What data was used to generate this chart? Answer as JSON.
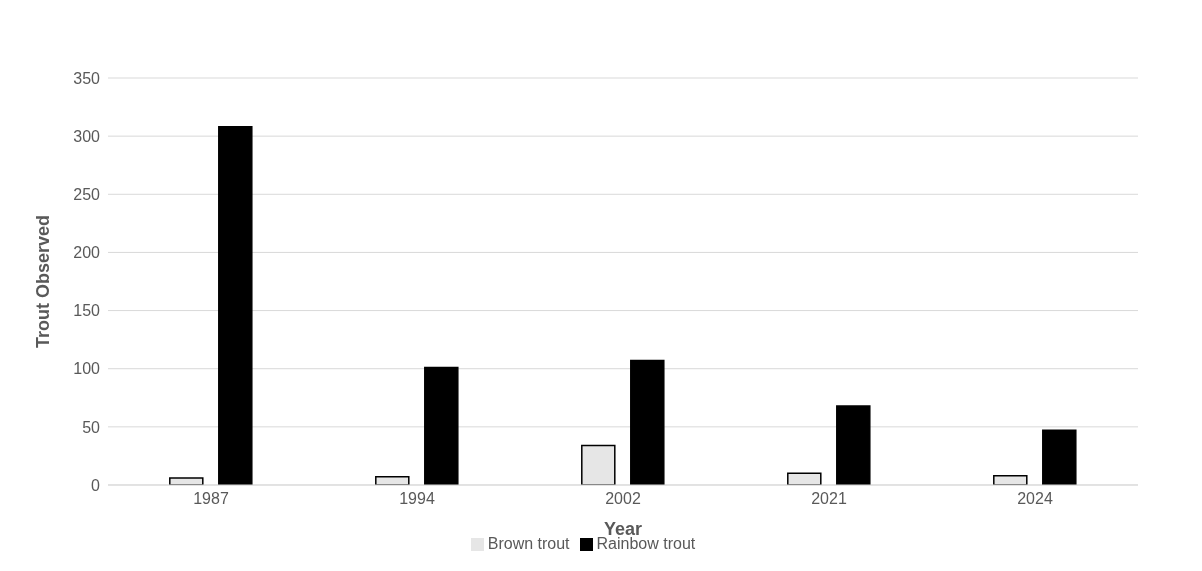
{
  "chart_data": {
    "type": "bar",
    "xlabel": "Year",
    "ylabel": "Trout Observed",
    "categories": [
      "1987",
      "1994",
      "2002",
      "2021",
      "2024"
    ],
    "series": [
      {
        "name": "Brown trout",
        "color": "#e6e6e6",
        "values": [
          6,
          7,
          34,
          10,
          8
        ]
      },
      {
        "name": "Rainbow trout",
        "color": "#000000",
        "values": [
          308,
          101,
          107,
          68,
          47
        ]
      }
    ],
    "ylim": [
      0,
      350
    ],
    "yticks": [
      0,
      50,
      100,
      150,
      200,
      250,
      300,
      350
    ],
    "grid": "y",
    "legend": "bottom"
  }
}
